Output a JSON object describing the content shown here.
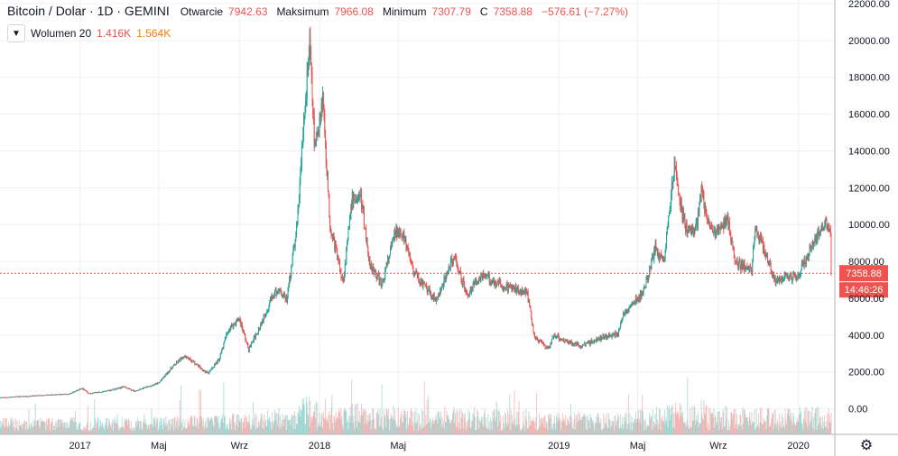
{
  "legend": {
    "title": "Bitcoin / Dolar · 1D · GEMINI",
    "open_label": "Otwarcie",
    "open_value": "7942.63",
    "high_label": "Maksimum",
    "high_value": "7966.08",
    "low_label": "Minimum",
    "low_value": "7307.79",
    "close_label": "C",
    "close_value": "7358.88",
    "change_value": "−576.61 (−7.27%)"
  },
  "volume": {
    "toggle_icon": "chevron-down-icon",
    "label": "Wolumen 20",
    "value1": "1.416K",
    "value2": "1.564K"
  },
  "settings_icon": "gear-icon",
  "colors": {
    "up": "#26a69a",
    "down": "#ef5350",
    "price_line": "#ef5350",
    "grid": "#eef0f3"
  },
  "chart_data": {
    "type": "candlestick",
    "ylim": [
      -1000,
      22000
    ],
    "y_ticks": [
      "22000.00",
      "20000.00",
      "18000.00",
      "16000.00",
      "14000.00",
      "12000.00",
      "10000.00",
      "8000.00",
      "6000.00",
      "4000.00",
      "2000.00",
      "0.00"
    ],
    "y_tick_values": [
      22000,
      20000,
      18000,
      16000,
      14000,
      12000,
      10000,
      8000,
      6000,
      4000,
      2000,
      0
    ],
    "x_ticks": [
      {
        "date": "2017-01-01",
        "label": "2017"
      },
      {
        "date": "2017-05-01",
        "label": "Maj"
      },
      {
        "date": "2017-09-01",
        "label": "Wrz"
      },
      {
        "date": "2018-01-01",
        "label": "2018"
      },
      {
        "date": "2018-05-01",
        "label": "Maj"
      },
      {
        "date": "2019-01-01",
        "label": "2019"
      },
      {
        "date": "2019-05-01",
        "label": "Maj"
      },
      {
        "date": "2019-09-01",
        "label": "Wrz"
      },
      {
        "date": "2020-01-01",
        "label": "2020"
      }
    ],
    "x_range": [
      "2016-09-01",
      "2020-02-20"
    ],
    "close_series": [
      [
        "2016-09-01",
        600
      ],
      [
        "2016-11-01",
        720
      ],
      [
        "2016-12-15",
        800
      ],
      [
        "2017-01-04",
        1100
      ],
      [
        "2017-01-15",
        820
      ],
      [
        "2017-02-15",
        1000
      ],
      [
        "2017-03-10",
        1200
      ],
      [
        "2017-03-25",
        950
      ],
      [
        "2017-04-15",
        1200
      ],
      [
        "2017-05-01",
        1400
      ],
      [
        "2017-05-20",
        2200
      ],
      [
        "2017-06-10",
        2900
      ],
      [
        "2017-07-15",
        1900
      ],
      [
        "2017-08-01",
        2700
      ],
      [
        "2017-08-15",
        4300
      ],
      [
        "2017-09-01",
        4900
      ],
      [
        "2017-09-15",
        3200
      ],
      [
        "2017-10-01",
        4400
      ],
      [
        "2017-10-20",
        6000
      ],
      [
        "2017-11-01",
        6500
      ],
      [
        "2017-11-12",
        5900
      ],
      [
        "2017-11-28",
        10000
      ],
      [
        "2017-12-08",
        15500
      ],
      [
        "2017-12-17",
        19800
      ],
      [
        "2017-12-25",
        14000
      ],
      [
        "2018-01-06",
        17000
      ],
      [
        "2018-01-17",
        10000
      ],
      [
        "2018-02-06",
        6900
      ],
      [
        "2018-02-20",
        11400
      ],
      [
        "2018-03-05",
        11500
      ],
      [
        "2018-03-18",
        8000
      ],
      [
        "2018-04-06",
        6700
      ],
      [
        "2018-04-25",
        9400
      ],
      [
        "2018-05-05",
        9800
      ],
      [
        "2018-05-25",
        7400
      ],
      [
        "2018-06-12",
        6500
      ],
      [
        "2018-06-29",
        5900
      ],
      [
        "2018-07-25",
        8300
      ],
      [
        "2018-08-14",
        6200
      ],
      [
        "2018-09-05",
        7300
      ],
      [
        "2018-10-10",
        6600
      ],
      [
        "2018-11-13",
        6400
      ],
      [
        "2018-11-25",
        3900
      ],
      [
        "2018-12-15",
        3200
      ],
      [
        "2018-12-25",
        4000
      ],
      [
        "2019-01-10",
        3700
      ],
      [
        "2019-02-05",
        3400
      ],
      [
        "2019-03-01",
        3800
      ],
      [
        "2019-04-01",
        4100
      ],
      [
        "2019-04-10",
        5200
      ],
      [
        "2019-05-10",
        6300
      ],
      [
        "2019-05-28",
        8700
      ],
      [
        "2019-06-10",
        8000
      ],
      [
        "2019-06-26",
        13200
      ],
      [
        "2019-07-05",
        11000
      ],
      [
        "2019-07-16",
        9500
      ],
      [
        "2019-07-31",
        10000
      ],
      [
        "2019-08-06",
        11900
      ],
      [
        "2019-08-15",
        10200
      ],
      [
        "2019-08-29",
        9500
      ],
      [
        "2019-09-15",
        10300
      ],
      [
        "2019-09-26",
        8000
      ],
      [
        "2019-10-22",
        7500
      ],
      [
        "2019-10-27",
        9700
      ],
      [
        "2019-11-10",
        8700
      ],
      [
        "2019-11-25",
        6900
      ],
      [
        "2019-12-15",
        7200
      ],
      [
        "2019-12-31",
        7200
      ],
      [
        "2020-01-20",
        8700
      ],
      [
        "2020-02-10",
        10200
      ],
      [
        "2020-02-14",
        10000
      ],
      [
        "2020-02-19",
        9600
      ],
      [
        "2020-02-20",
        7358.88
      ]
    ],
    "last_price_label": "7358.88",
    "countdown_label": "14:46:26"
  }
}
